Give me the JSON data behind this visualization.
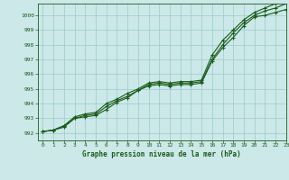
{
  "title": "Graphe pression niveau de la mer (hPa)",
  "bg_color": "#cce8e8",
  "grid_color": "#99cccc",
  "line_color": "#1a5c1a",
  "xlim": [
    -0.5,
    23
  ],
  "ylim": [
    991.5,
    1000.8
  ],
  "yticks": [
    992,
    993,
    994,
    995,
    996,
    997,
    998,
    999,
    1000
  ],
  "xticks": [
    0,
    1,
    2,
    3,
    4,
    5,
    6,
    7,
    8,
    9,
    10,
    11,
    12,
    13,
    14,
    15,
    16,
    17,
    18,
    19,
    20,
    21,
    22,
    23
  ],
  "series1_x": [
    0,
    1,
    2,
    3,
    4,
    5,
    6,
    7,
    8,
    9,
    10,
    11,
    12,
    13,
    14,
    15,
    16,
    17,
    18,
    19,
    20,
    21,
    22,
    23
  ],
  "series1_y": [
    992.1,
    992.2,
    992.4,
    993.0,
    993.1,
    993.2,
    993.6,
    994.1,
    994.4,
    994.9,
    995.2,
    995.3,
    995.2,
    995.3,
    995.3,
    995.4,
    996.9,
    997.8,
    998.5,
    999.3,
    999.9,
    1000.0,
    1000.2,
    1000.4
  ],
  "series2_x": [
    0,
    1,
    2,
    3,
    4,
    5,
    6,
    7,
    8,
    9,
    10,
    11,
    12,
    13,
    14,
    15,
    16,
    17,
    18,
    19,
    20,
    21,
    22,
    23
  ],
  "series2_y": [
    992.1,
    992.2,
    992.5,
    993.0,
    993.2,
    993.3,
    993.8,
    994.2,
    994.5,
    994.9,
    995.3,
    995.4,
    995.3,
    995.4,
    995.4,
    995.5,
    997.0,
    998.0,
    998.8,
    999.5,
    1000.0,
    1000.3,
    1000.5,
    1000.8
  ],
  "series3_x": [
    0,
    1,
    2,
    3,
    4,
    5,
    6,
    7,
    8,
    9,
    10,
    11,
    12,
    13,
    14,
    15,
    16,
    17,
    18,
    19,
    20,
    21,
    22,
    23
  ],
  "series3_y": [
    992.1,
    992.2,
    992.5,
    993.1,
    993.3,
    993.4,
    994.0,
    994.3,
    994.7,
    995.0,
    995.4,
    995.5,
    995.4,
    995.5,
    995.5,
    995.6,
    997.3,
    998.3,
    999.0,
    999.7,
    1000.2,
    1000.5,
    1000.8,
    1001.1
  ]
}
